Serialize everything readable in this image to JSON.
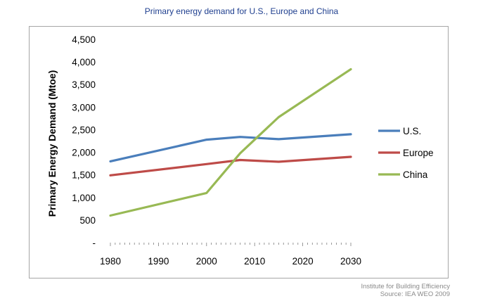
{
  "chart_data": {
    "type": "line",
    "title": "Primary energy demand for U.S., Europe and China",
    "xlabel": "",
    "ylabel": "Primary Energy Demand (Mtoe)",
    "xlim": [
      1980,
      2030
    ],
    "ylim": [
      0,
      4500
    ],
    "x_ticks": [
      "1980",
      "1990",
      "2000",
      "2010",
      "2020",
      "2030"
    ],
    "y_ticks": [
      "-",
      "500",
      "1,000",
      "1,500",
      "2,000",
      "2,500",
      "3,000",
      "3,500",
      "4,000",
      "4,500"
    ],
    "legend_position": "right",
    "series": [
      {
        "name": "U.S.",
        "color": "#4a7ebb",
        "x": [
          1980,
          2000,
          2007,
          2015,
          2030
        ],
        "values": [
          1800,
          2280,
          2340,
          2290,
          2400
        ]
      },
      {
        "name": "Europe",
        "color": "#be4b48",
        "x": [
          1980,
          2000,
          2007,
          2015,
          2030
        ],
        "values": [
          1490,
          1740,
          1830,
          1790,
          1900
        ]
      },
      {
        "name": "China",
        "color": "#98b954",
        "x": [
          1980,
          2000,
          2007,
          2015,
          2030
        ],
        "values": [
          600,
          1100,
          1980,
          2780,
          3840
        ]
      }
    ]
  },
  "footer": {
    "line1": "Institute for Building Efficiency",
    "line2": "Source: IEA WEO 2009"
  }
}
